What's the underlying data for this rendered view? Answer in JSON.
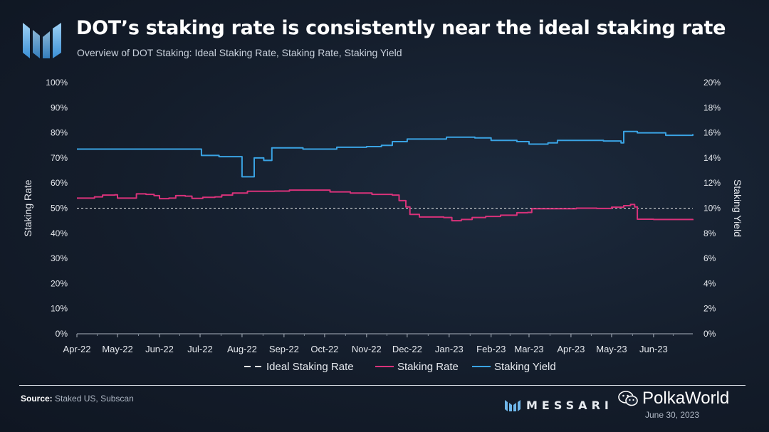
{
  "header": {
    "title": "DOT’s staking rate is consistently near the ideal staking rate",
    "subtitle": "Overview of DOT Staking: Ideal Staking Rate, Staking Rate, Staking Yield"
  },
  "footer": {
    "source_label": "Source:",
    "source_text": "Staked US, Subscan",
    "brand": "MESSARI",
    "watermark": "PolkaWorld",
    "date": "June 30, 2023"
  },
  "colors": {
    "staking_rate": "#d9327a",
    "staking_yield": "#3aa3e3",
    "ideal": "#e6e6e6",
    "axis_text": "#e6e9ee"
  },
  "icons": [
    "messari-logo-icon",
    "wechat-icon"
  ],
  "chart_data": {
    "type": "line",
    "x_range": [
      "2022-04-01",
      "2023-06-30"
    ],
    "x_tick_labels": [
      "Apr-22",
      "May-22",
      "Jun-22",
      "Jul-22",
      "Aug-22",
      "Sep-22",
      "Oct-22",
      "Nov-22",
      "Dec-22",
      "Jan-23",
      "Feb-23",
      "Mar-23",
      "Apr-23",
      "May-23",
      "Jun-23"
    ],
    "x_tick_dates": [
      "2022-04-01",
      "2022-05-01",
      "2022-06-01",
      "2022-07-01",
      "2022-08-01",
      "2022-09-01",
      "2022-10-01",
      "2022-11-01",
      "2022-12-01",
      "2023-01-01",
      "2023-02-01",
      "2023-03-01",
      "2023-04-01",
      "2023-05-01",
      "2023-06-01"
    ],
    "y_left": {
      "label": "Staking Rate",
      "range": [
        0,
        100
      ],
      "ticks": [
        "0%",
        "10%",
        "20%",
        "30%",
        "40%",
        "50%",
        "60%",
        "70%",
        "80%",
        "90%",
        "100%"
      ]
    },
    "y_right": {
      "label": "Staking Yield",
      "range": [
        0,
        20
      ],
      "ticks": [
        "0%",
        "2%",
        "4%",
        "6%",
        "8%",
        "10%",
        "12%",
        "14%",
        "16%",
        "18%",
        "20%"
      ]
    },
    "legend": {
      "position": "bottom"
    },
    "series": [
      {
        "name": "Ideal Staking Rate",
        "axis": "left",
        "style": "dashed",
        "points": [
          [
            "2022-04-01",
            50
          ],
          [
            "2023-06-30",
            50
          ]
        ]
      },
      {
        "name": "Staking Rate",
        "axis": "left",
        "style": "solid",
        "points": [
          [
            "2022-04-01",
            54.0
          ],
          [
            "2022-04-10",
            54.0
          ],
          [
            "2022-04-14",
            54.5
          ],
          [
            "2022-04-20",
            55.2
          ],
          [
            "2022-04-29",
            55.3
          ],
          [
            "2022-05-01",
            54.0
          ],
          [
            "2022-05-12",
            54.0
          ],
          [
            "2022-05-15",
            55.7
          ],
          [
            "2022-05-22",
            55.5
          ],
          [
            "2022-05-28",
            55.0
          ],
          [
            "2022-06-01",
            53.8
          ],
          [
            "2022-06-08",
            54.0
          ],
          [
            "2022-06-13",
            55.0
          ],
          [
            "2022-06-20",
            54.8
          ],
          [
            "2022-06-25",
            53.9
          ],
          [
            "2022-07-03",
            54.3
          ],
          [
            "2022-07-12",
            54.5
          ],
          [
            "2022-07-17",
            55.2
          ],
          [
            "2022-07-25",
            56.0
          ],
          [
            "2022-08-05",
            56.7
          ],
          [
            "2022-08-25",
            56.8
          ],
          [
            "2022-09-05",
            57.2
          ],
          [
            "2022-09-22",
            57.2
          ],
          [
            "2022-10-05",
            56.5
          ],
          [
            "2022-10-20",
            56.0
          ],
          [
            "2022-11-05",
            55.5
          ],
          [
            "2022-11-20",
            55.2
          ],
          [
            "2022-11-25",
            53.0
          ],
          [
            "2022-11-30",
            50.5
          ],
          [
            "2022-12-03",
            47.5
          ],
          [
            "2022-12-10",
            46.5
          ],
          [
            "2022-12-28",
            46.3
          ],
          [
            "2023-01-03",
            45.0
          ],
          [
            "2023-01-10",
            45.5
          ],
          [
            "2023-01-18",
            46.3
          ],
          [
            "2023-01-28",
            46.7
          ],
          [
            "2023-02-08",
            47.2
          ],
          [
            "2023-02-20",
            48.2
          ],
          [
            "2023-02-28",
            48.3
          ],
          [
            "2023-03-03",
            49.8
          ],
          [
            "2023-03-20",
            49.8
          ],
          [
            "2023-04-05",
            50.0
          ],
          [
            "2023-04-20",
            49.9
          ],
          [
            "2023-05-01",
            50.4
          ],
          [
            "2023-05-10",
            51.0
          ],
          [
            "2023-05-15",
            51.5
          ],
          [
            "2023-05-18",
            50.5
          ],
          [
            "2023-05-20",
            45.6
          ],
          [
            "2023-06-01",
            45.5
          ],
          [
            "2023-06-30",
            45.2
          ]
        ]
      },
      {
        "name": "Staking Yield",
        "axis": "right",
        "style": "solid",
        "points": [
          [
            "2022-04-01",
            14.7
          ],
          [
            "2022-06-30",
            14.7
          ],
          [
            "2022-07-02",
            14.2
          ],
          [
            "2022-07-15",
            14.1
          ],
          [
            "2022-07-31",
            14.1
          ],
          [
            "2022-08-01",
            12.5
          ],
          [
            "2022-08-09",
            12.5
          ],
          [
            "2022-08-10",
            14.0
          ],
          [
            "2022-08-17",
            13.8
          ],
          [
            "2022-08-23",
            14.8
          ],
          [
            "2022-09-15",
            14.7
          ],
          [
            "2022-10-10",
            14.85
          ],
          [
            "2022-11-01",
            14.9
          ],
          [
            "2022-11-12",
            15.0
          ],
          [
            "2022-11-20",
            15.3
          ],
          [
            "2022-12-01",
            15.5
          ],
          [
            "2022-12-28",
            15.5
          ],
          [
            "2022-12-30",
            15.65
          ],
          [
            "2023-01-20",
            15.6
          ],
          [
            "2023-02-01",
            15.4
          ],
          [
            "2023-02-20",
            15.3
          ],
          [
            "2023-03-01",
            15.1
          ],
          [
            "2023-03-15",
            15.2
          ],
          [
            "2023-03-22",
            15.4
          ],
          [
            "2023-04-25",
            15.35
          ],
          [
            "2023-05-08",
            15.2
          ],
          [
            "2023-05-10",
            16.1
          ],
          [
            "2023-05-20",
            16.0
          ],
          [
            "2023-06-10",
            15.8
          ],
          [
            "2023-06-30",
            15.9
          ]
        ]
      }
    ]
  }
}
